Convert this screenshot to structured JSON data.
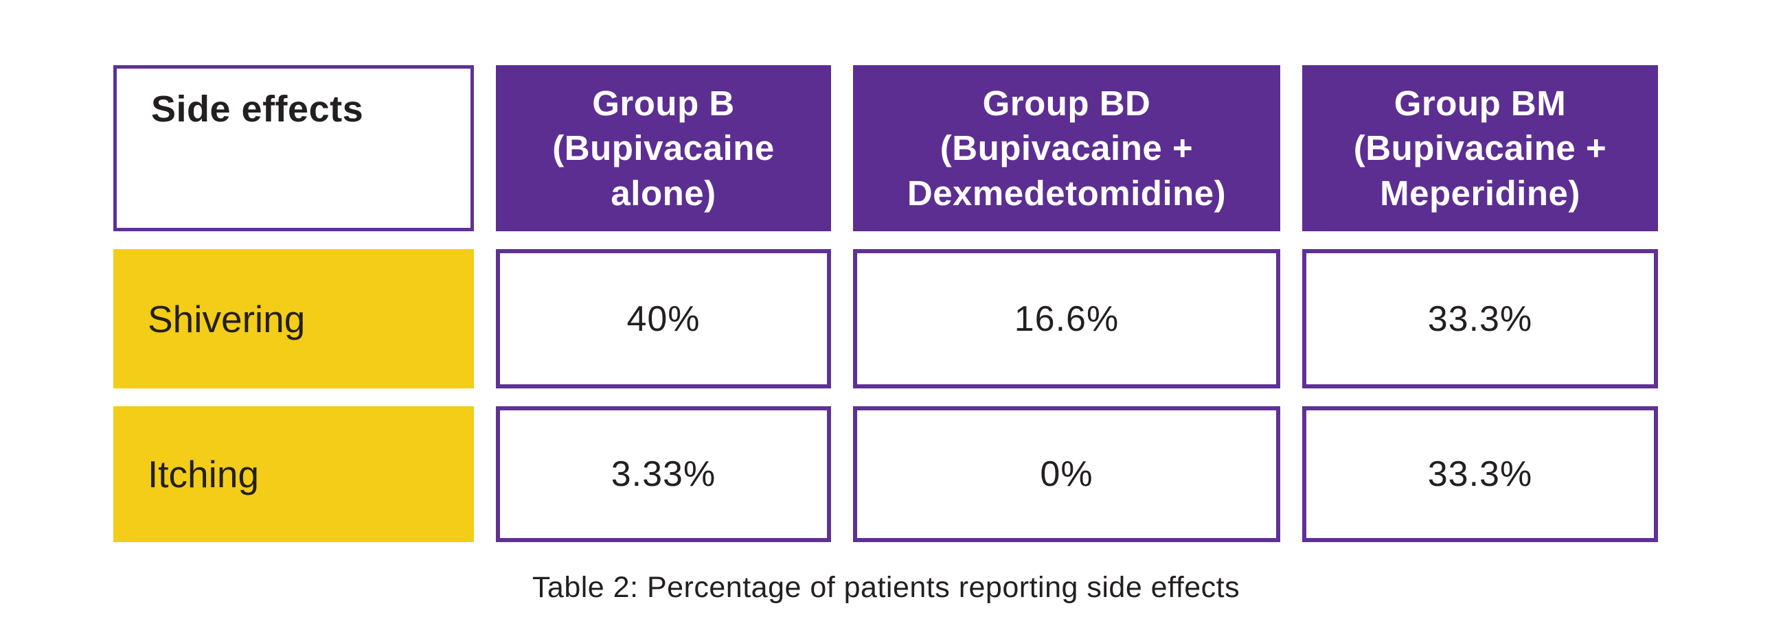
{
  "chart_data": {
    "type": "table",
    "title": "Table 2: Percentage of patients reporting side effects",
    "columns": [
      "Side effects",
      "Group B (Bupivacaine alone)",
      "Group BD (Bupivacaine + Dexmedetomidine)",
      "Group BM (Bupivacaine + Meperidine)"
    ],
    "rows": [
      {
        "side_effect": "Shivering",
        "group_b_pct": 40,
        "group_bd_pct": 16.6,
        "group_bm_pct": 33.3
      },
      {
        "side_effect": "Itching",
        "group_b_pct": 3.33,
        "group_bd_pct": 0,
        "group_bm_pct": 33.3
      }
    ]
  },
  "table": {
    "corner_header": "Side effects",
    "column_headers": [
      "Group B\n(Bupivacaine\nalone)",
      "Group BD\n(Bupivacaine +\nDexmedetomidine)",
      "Group BM\n(Bupivacaine +\nMeperidine)"
    ],
    "rows": [
      {
        "label": "Shivering",
        "values": [
          "40%",
          "16.6%",
          "33.3%"
        ]
      },
      {
        "label": "Itching",
        "values": [
          "3.33%",
          "0%",
          "33.3%"
        ]
      }
    ],
    "caption": "Table 2: Percentage of patients reporting side effects"
  },
  "colors": {
    "header_purple": "#5c2e91",
    "border_purple": "#5f3194",
    "row_label_yellow": "#f3cd17",
    "text_dark": "#231f20",
    "header_text": "#ffffff"
  }
}
